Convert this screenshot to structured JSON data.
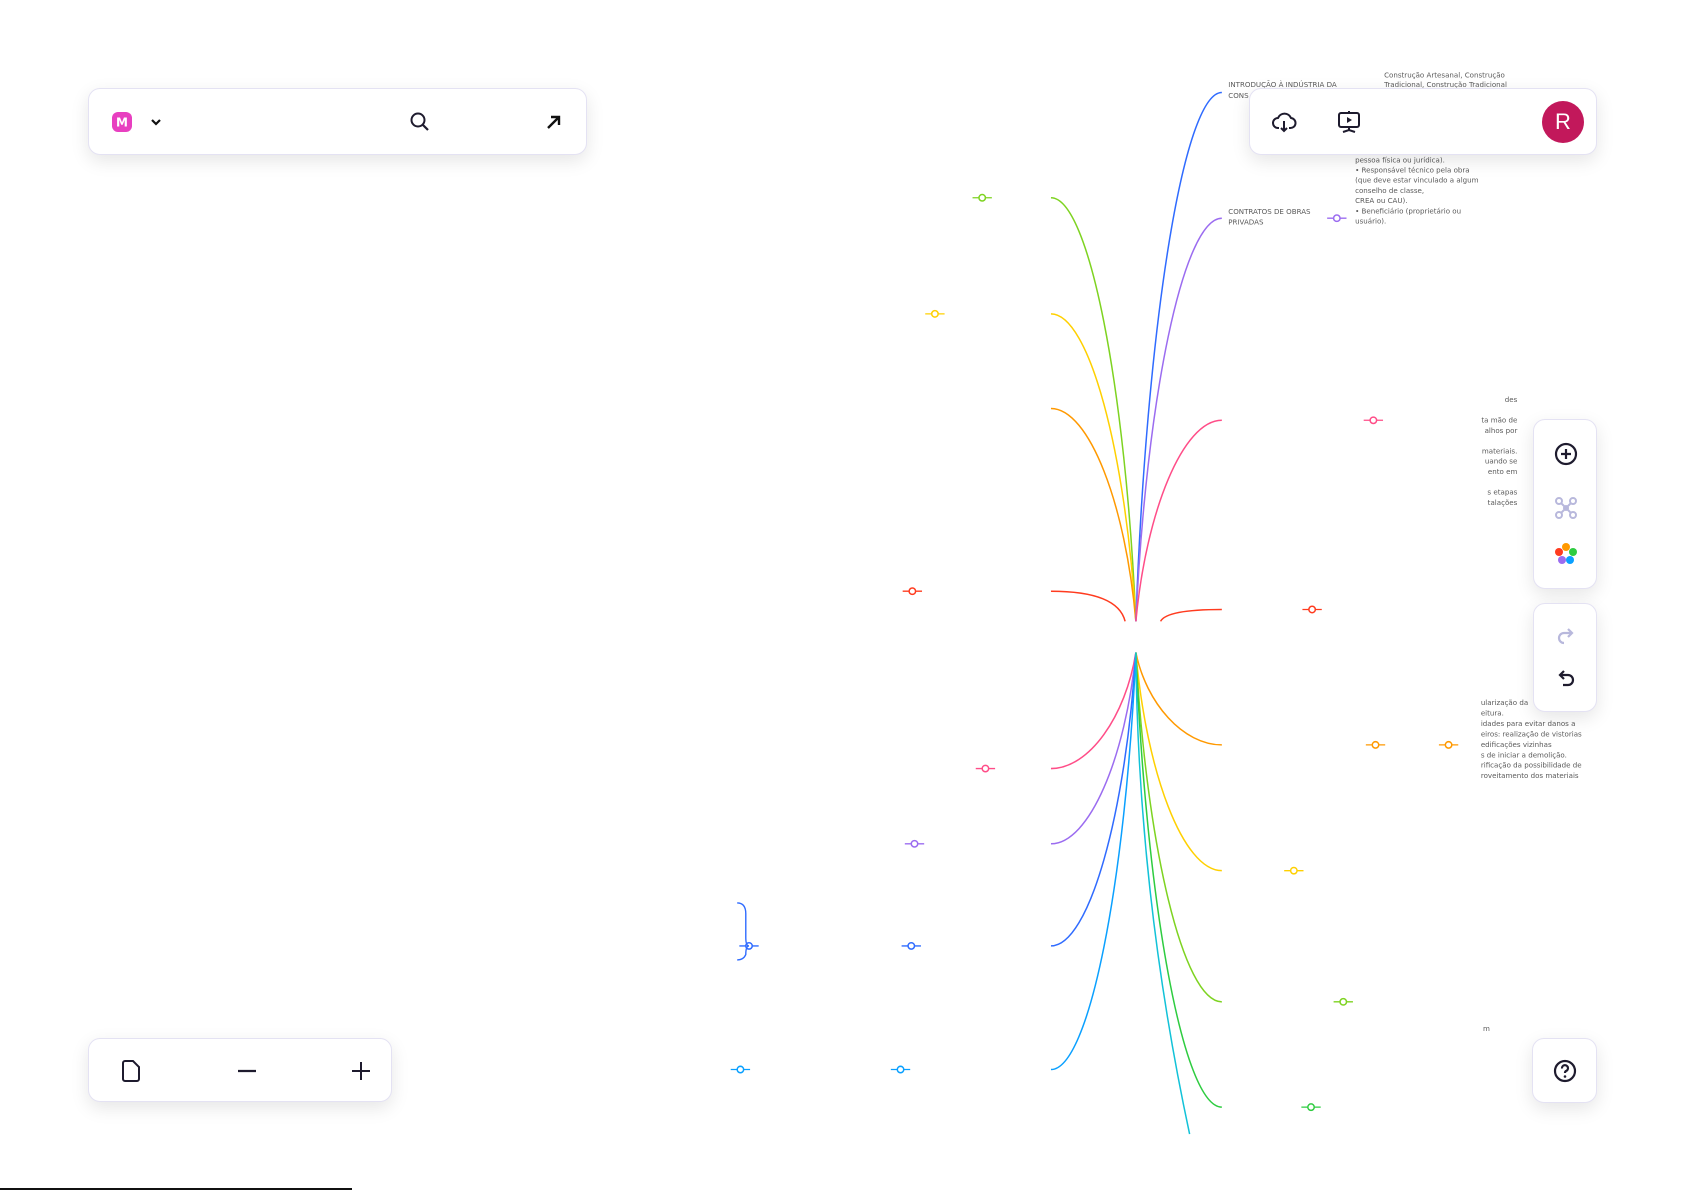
{
  "colors": {
    "brand": "#e83fc0",
    "avatar": "#c2185b",
    "icon_dark": "#1e1b2e",
    "icon_muted": "#b8b8dc",
    "branches": [
      "#7ed321",
      "#ffd000",
      "#ff9900",
      "#ff3b1f",
      "#ff4d88",
      "#9b6cf0",
      "#2f6bff",
      "#0aa0ff",
      "#2f6bff",
      "#9b6cf0",
      "#ff4d88",
      "#ff3b1f",
      "#ff9900",
      "#ffd000",
      "#7ed321",
      "#2ecc40",
      "#12c2d8"
    ]
  },
  "toolbar_left": {
    "logo_letter": "M"
  },
  "toolbar_right": {
    "avatar_letter": "R"
  },
  "mindmap": {
    "intro_label": [
      "INTRODUÇÃO À INDÚSTRIA DA",
      "CONS"
    ],
    "intro_note": [
      "Construção Artesanal, Construção",
      "Tradicional, Construção Tradicional"
    ],
    "contracts_label": [
      "CONTRATOS DE OBRAS",
      "PRIVADAS"
    ],
    "contracts_note": [
      "pessoa física ou jurídica).",
      "• Responsável técnico pela obra",
      "(que deve estar vinculado a algum",
      "conselho de classe,",
      "CREA ou CAU).",
      "• Beneficiário (proprietário ou",
      "usuário)."
    ],
    "right_snippets_a": [
      "des",
      "ta mão de",
      "alhos por",
      "materiais.",
      "uando se",
      "ento em",
      "s etapas",
      "talações"
    ],
    "right_snippets_b": [
      "ularização da",
      "eitura.",
      "idades para evitar danos a",
      "eiros: realização de vistorias",
      "edificações vizinhas",
      "s de iniciar a demolição.",
      "rificação da possibilidade de",
      "roveitamento dos materiais"
    ],
    "right_snippet_c": "m"
  }
}
